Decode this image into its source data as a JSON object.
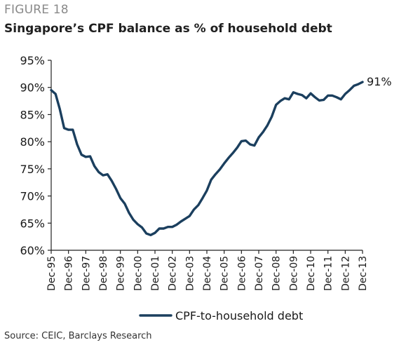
{
  "figure_label": "FIGURE 18",
  "title": "Singapore’s CPF balance as % of household debt",
  "source": "Source: CEIC, Barclays Research",
  "colors": {
    "line": "#1b3f5e",
    "axis": "#222222",
    "text": "#1a1a1a",
    "figure_label": "#8a8a8a"
  },
  "chart_data": {
    "type": "line",
    "title": "Singapore’s CPF balance as % of household debt",
    "xlabel": "",
    "ylabel": "",
    "ylim": [
      60,
      95
    ],
    "y_ticks": [
      60,
      65,
      70,
      75,
      80,
      85,
      90,
      95
    ],
    "y_tick_labels": [
      "60%",
      "65%",
      "70%",
      "75%",
      "80%",
      "85%",
      "90%",
      "95%"
    ],
    "x_range": [
      1995.917,
      2013.917
    ],
    "x_ticks": [
      1995.917,
      1996.917,
      1997.917,
      1998.917,
      1999.917,
      2000.917,
      2001.917,
      2002.917,
      2003.917,
      2004.917,
      2005.917,
      2006.917,
      2007.917,
      2008.917,
      2009.917,
      2010.917,
      2011.917,
      2012.917,
      2013.917
    ],
    "x_tick_labels": [
      "Dec-95",
      "Dec-96",
      "Dec-97",
      "Dec-98",
      "Dec-99",
      "Dec-00",
      "Dec-01",
      "Dec-02",
      "Dec-03",
      "Dec-04",
      "Dec-05",
      "Dec-06",
      "Dec-07",
      "Dec-08",
      "Dec-09",
      "Dec-10",
      "Dec-11",
      "Dec-12",
      "Dec-13"
    ],
    "grid": false,
    "legend_position": "bottom-center",
    "annotation": {
      "text": "91%",
      "series": 0,
      "point": "last"
    },
    "series": [
      {
        "name": "CPF-to-household debt",
        "color": "#1b3f5e",
        "points": [
          [
            1995.917,
            89.5
          ],
          [
            1996.167,
            88.8
          ],
          [
            1996.417,
            86.0
          ],
          [
            1996.667,
            82.5
          ],
          [
            1996.917,
            82.2
          ],
          [
            1997.167,
            82.2
          ],
          [
            1997.417,
            79.5
          ],
          [
            1997.667,
            77.6
          ],
          [
            1997.917,
            77.2
          ],
          [
            1998.167,
            77.3
          ],
          [
            1998.417,
            75.5
          ],
          [
            1998.667,
            74.4
          ],
          [
            1998.917,
            73.8
          ],
          [
            1999.167,
            74.0
          ],
          [
            1999.417,
            72.8
          ],
          [
            1999.667,
            71.3
          ],
          [
            1999.917,
            69.6
          ],
          [
            2000.167,
            68.6
          ],
          [
            2000.417,
            66.9
          ],
          [
            2000.667,
            65.6
          ],
          [
            2000.917,
            64.8
          ],
          [
            2001.167,
            64.2
          ],
          [
            2001.417,
            63.1
          ],
          [
            2001.667,
            62.8
          ],
          [
            2001.917,
            63.2
          ],
          [
            2002.167,
            64.0
          ],
          [
            2002.417,
            64.0
          ],
          [
            2002.667,
            64.3
          ],
          [
            2002.917,
            64.3
          ],
          [
            2003.167,
            64.7
          ],
          [
            2003.417,
            65.3
          ],
          [
            2003.667,
            65.8
          ],
          [
            2003.917,
            66.3
          ],
          [
            2004.167,
            67.5
          ],
          [
            2004.417,
            68.3
          ],
          [
            2004.667,
            69.6
          ],
          [
            2004.917,
            71.0
          ],
          [
            2005.167,
            73.0
          ],
          [
            2005.417,
            74.0
          ],
          [
            2005.667,
            74.9
          ],
          [
            2005.917,
            76.0
          ],
          [
            2006.167,
            77.0
          ],
          [
            2006.417,
            77.9
          ],
          [
            2006.667,
            78.9
          ],
          [
            2006.917,
            80.1
          ],
          [
            2007.167,
            80.2
          ],
          [
            2007.417,
            79.5
          ],
          [
            2007.667,
            79.3
          ],
          [
            2007.917,
            80.8
          ],
          [
            2008.167,
            81.8
          ],
          [
            2008.417,
            83.0
          ],
          [
            2008.667,
            84.6
          ],
          [
            2008.917,
            86.8
          ],
          [
            2009.167,
            87.5
          ],
          [
            2009.417,
            88.0
          ],
          [
            2009.667,
            87.8
          ],
          [
            2009.917,
            89.1
          ],
          [
            2010.167,
            88.8
          ],
          [
            2010.417,
            88.6
          ],
          [
            2010.667,
            88.0
          ],
          [
            2010.917,
            88.9
          ],
          [
            2011.167,
            88.2
          ],
          [
            2011.417,
            87.6
          ],
          [
            2011.667,
            87.7
          ],
          [
            2011.917,
            88.5
          ],
          [
            2012.167,
            88.5
          ],
          [
            2012.417,
            88.2
          ],
          [
            2012.667,
            87.8
          ],
          [
            2012.917,
            88.8
          ],
          [
            2013.167,
            89.5
          ],
          [
            2013.417,
            90.3
          ],
          [
            2013.667,
            90.6
          ],
          [
            2013.917,
            91.0
          ]
        ]
      }
    ]
  }
}
